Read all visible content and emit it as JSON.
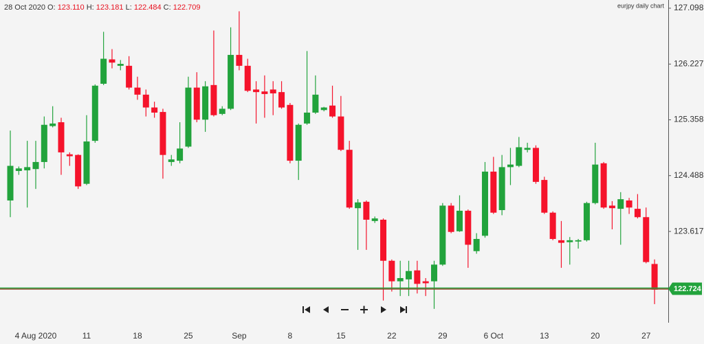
{
  "chart_data": {
    "type": "candlestick",
    "header": {
      "date": "28 Oct 2020",
      "fields": [
        {
          "label": "O:",
          "value": "123.110"
        },
        {
          "label": "H:",
          "value": "123.181"
        },
        {
          "label": "L:",
          "value": "122.484"
        },
        {
          "label": "C:",
          "value": "122.709"
        }
      ]
    },
    "watermark": "eurjpy daily chart",
    "categories": [
      null,
      null,
      null,
      "4 Aug 2020",
      null,
      null,
      null,
      null,
      null,
      "11",
      null,
      null,
      null,
      null,
      null,
      "18",
      null,
      null,
      null,
      null,
      null,
      "25",
      null,
      null,
      null,
      null,
      null,
      "Sep",
      null,
      null,
      null,
      null,
      null,
      "8",
      null,
      null,
      null,
      null,
      null,
      "15",
      null,
      null,
      null,
      null,
      null,
      "22",
      null,
      null,
      null,
      null,
      null,
      "29",
      null,
      null,
      null,
      null,
      null,
      "6 Oct",
      null,
      null,
      null,
      null,
      null,
      "13",
      null,
      null,
      null,
      null,
      null,
      "20",
      null,
      null,
      null,
      null,
      null,
      "27",
      null
    ],
    "open": [
      124.1,
      124.56,
      124.57,
      124.59,
      124.7,
      125.26,
      125.32,
      124.82,
      124.81,
      124.36,
      125.03,
      125.92,
      126.3,
      126.2,
      126.2,
      125.86,
      125.75,
      125.55,
      125.48,
      124.7,
      124.72,
      124.94,
      125.86,
      125.36,
      125.9,
      125.45,
      125.53,
      126.37,
      126.2,
      125.83,
      125.8,
      125.83,
      125.79,
      125.59,
      124.72,
      125.3,
      125.47,
      125.51,
      125.58,
      125.41,
      124.89,
      123.98,
      124.08,
      123.78,
      123.8,
      123.16,
      122.84,
      122.87,
      123.01,
      122.84,
      122.84,
      123.1,
      124.02,
      123.62,
      123.94,
      123.31,
      123.55,
      124.55,
      123.95,
      124.62,
      124.64,
      124.89,
      124.92,
      124.42,
      123.91,
      123.48,
      123.45,
      123.46,
      123.48,
      124.06,
      124.68,
      124.02,
      123.97,
      124.1,
      123.97,
      123.84,
      123.11
    ],
    "high": [
      125.19,
      124.63,
      125.03,
      125.03,
      125.41,
      125.57,
      125.39,
      124.85,
      124.82,
      125.43,
      125.91,
      126.73,
      126.46,
      126.29,
      126.35,
      126.03,
      125.83,
      125.64,
      125.53,
      124.81,
      125.32,
      126.03,
      126.1,
      125.96,
      126.75,
      125.57,
      126.8,
      127.05,
      126.31,
      125.96,
      126.05,
      125.96,
      125.96,
      125.62,
      125.3,
      126.43,
      126.05,
      125.56,
      125.89,
      125.73,
      125.03,
      124.12,
      124.1,
      123.85,
      123.82,
      123.18,
      123.16,
      123.16,
      123.16,
      122.89,
      123.16,
      124.06,
      124.06,
      124.18,
      123.96,
      123.59,
      124.7,
      124.78,
      124.81,
      124.92,
      125.09,
      125.0,
      124.96,
      124.47,
      123.93,
      123.78,
      123.53,
      123.5,
      124.08,
      125.0,
      124.7,
      124.09,
      124.23,
      124.14,
      124.2,
      123.99,
      123.181
    ],
    "low": [
      123.84,
      124.5,
      123.99,
      124.28,
      124.6,
      125.24,
      124.5,
      124.64,
      124.28,
      124.34,
      125.0,
      125.9,
      126.16,
      126.13,
      125.83,
      125.67,
      125.41,
      125.39,
      124.44,
      124.64,
      124.68,
      124.92,
      125.32,
      125.17,
      125.41,
      125.43,
      125.51,
      126.13,
      125.79,
      125.3,
      125.39,
      125.43,
      125.53,
      124.68,
      124.42,
      125.28,
      125.45,
      125.49,
      125.39,
      124.87,
      123.97,
      123.33,
      123.33,
      123.75,
      122.54,
      122.68,
      122.61,
      122.61,
      122.65,
      122.61,
      122.41,
      123.08,
      123.59,
      123.61,
      123.05,
      123.27,
      123.52,
      123.89,
      123.87,
      124.34,
      124.62,
      124.85,
      124.36,
      123.89,
      123.48,
      123.05,
      123.1,
      123.35,
      123.46,
      124.04,
      123.97,
      123.65,
      123.41,
      123.89,
      123.82,
      123.12,
      122.484
    ],
    "close": [
      124.64,
      124.6,
      124.62,
      124.7,
      125.28,
      125.3,
      124.85,
      124.79,
      124.32,
      125.02,
      125.89,
      126.31,
      126.25,
      126.23,
      125.86,
      125.75,
      125.55,
      125.47,
      124.81,
      124.74,
      124.91,
      125.86,
      125.36,
      125.88,
      125.43,
      125.53,
      126.37,
      126.2,
      125.81,
      125.79,
      125.76,
      125.77,
      125.55,
      124.72,
      125.28,
      125.47,
      125.75,
      125.55,
      125.41,
      124.89,
      123.99,
      124.07,
      123.8,
      123.82,
      123.16,
      122.84,
      122.89,
      123.0,
      122.8,
      122.81,
      123.1,
      124.02,
      123.61,
      123.94,
      123.41,
      123.5,
      124.55,
      123.91,
      124.62,
      124.66,
      124.93,
      124.92,
      124.39,
      123.91,
      123.5,
      123.44,
      123.48,
      123.48,
      124.06,
      124.66,
      123.99,
      123.98,
      124.12,
      123.99,
      123.84,
      123.14,
      122.709
    ],
    "up_color": "#22a33c",
    "down_color": "#f5132b",
    "last_price": 122.724,
    "ylim": [
      122.194,
      127.226
    ],
    "yticks": [
      123.617,
      124.488,
      125.358,
      126.227,
      127.098
    ],
    "grid": false
  }
}
